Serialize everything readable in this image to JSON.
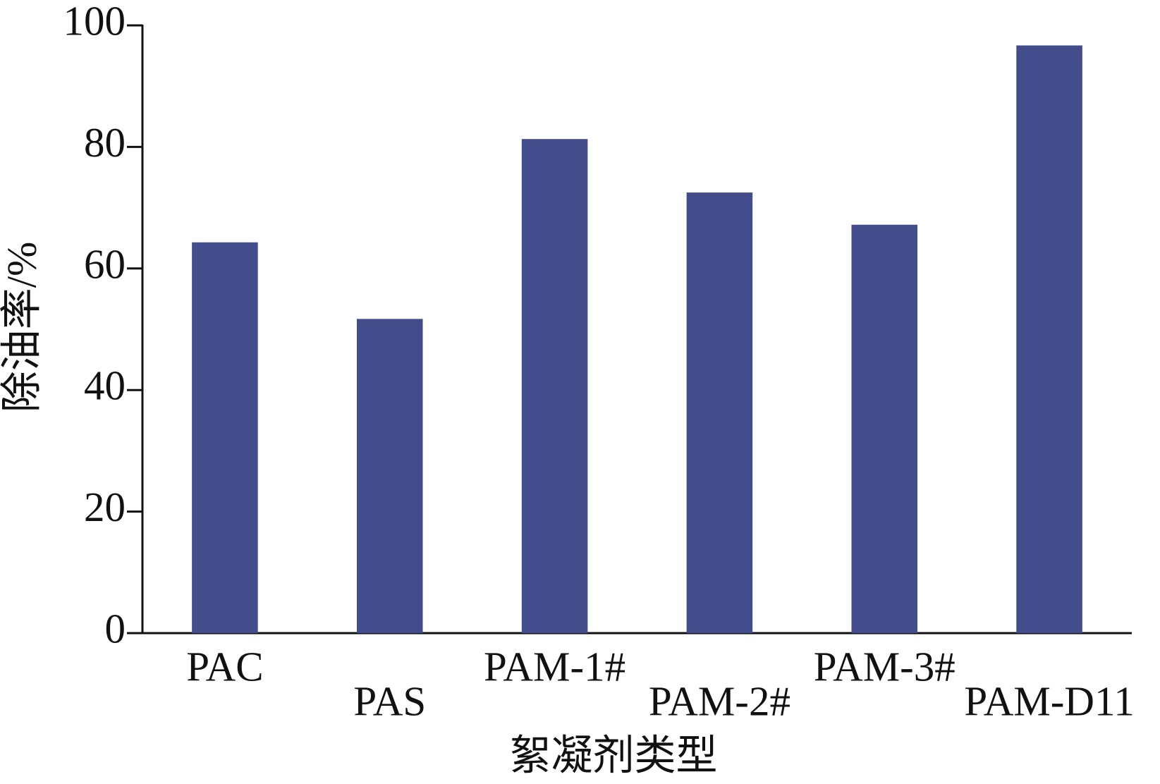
{
  "chart_data": {
    "type": "bar",
    "categories": [
      "PAC",
      "PAS",
      "PAM-1#",
      "PAM-2#",
      "PAM-3#",
      "PAM-D11"
    ],
    "values": [
      64.3,
      51.7,
      81.3,
      72.5,
      67.2,
      96.7
    ],
    "color": "#434d8b",
    "xlabel": "絮凝剂类型",
    "ylabel": "除油率/%",
    "ylim": [
      0,
      100
    ],
    "yticks": [
      0,
      20,
      40,
      60,
      80,
      100
    ],
    "grid": false
  }
}
